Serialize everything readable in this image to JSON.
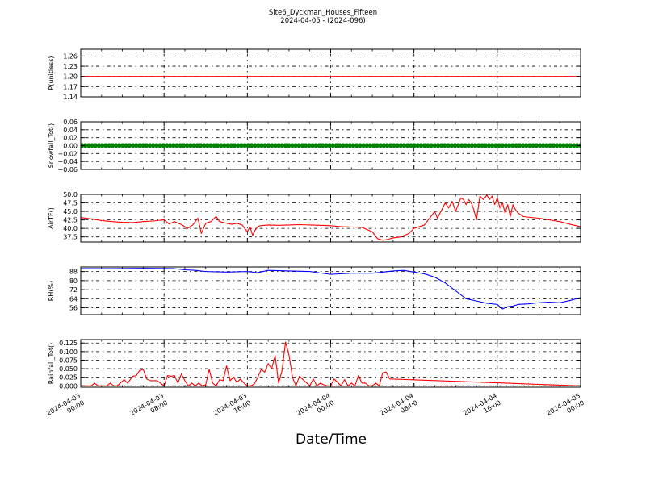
{
  "figure": {
    "title": "Site6_Dyckman_Houses_Fifteen",
    "subtitle": "2024-04-05 - (2024-096)",
    "xlabel": "Date/Time"
  },
  "chart_data": [
    {
      "type": "line",
      "ylabel": "P(unitless)",
      "ylim": [
        1.14,
        1.28
      ],
      "yticks": [
        "1.14",
        "1.17",
        "1.20",
        "1.23",
        "1.26"
      ],
      "grid": true,
      "series": [
        {
          "color": "#ff0000",
          "marker": false,
          "x": [
            "2024-04-03 00:00",
            "2024-04-05 00:00"
          ],
          "values": [
            1.2,
            1.2
          ]
        }
      ]
    },
    {
      "type": "line",
      "ylabel": "Snowfall_Tot()",
      "ylim": [
        -0.06,
        0.06
      ],
      "yticks": [
        "−0.06",
        "−0.04",
        "−0.02",
        "0.00",
        "0.02",
        "0.04",
        "0.06"
      ],
      "grid": true,
      "series": [
        {
          "color": "#008000",
          "marker": true,
          "x": [
            "2024-04-03 00:00",
            "2024-04-05 00:00"
          ],
          "values": [
            0,
            0
          ]
        }
      ]
    },
    {
      "type": "line",
      "ylabel": "AirTF()",
      "ylim": [
        36.0,
        50.0
      ],
      "yticks": [
        "37.5",
        "40.0",
        "42.5",
        "45.0",
        "47.5",
        "50.0"
      ],
      "grid": true,
      "series": [
        {
          "color": "#ff0000",
          "marker": false,
          "x": [
            "2024-04-03 00:00",
            "2024-04-03 01:00",
            "2024-04-03 02:00",
            "2024-04-03 03:00",
            "2024-04-03 04:00",
            "2024-04-03 05:00",
            "2024-04-03 06:00",
            "2024-04-03 07:00",
            "2024-04-03 08:00",
            "2024-04-03 08:30",
            "2024-04-03 09:00",
            "2024-04-03 09:45",
            "2024-04-03 10:15",
            "2024-04-03 10:45",
            "2024-04-03 11:15",
            "2024-04-03 11:35",
            "2024-04-03 12:00",
            "2024-04-03 12:30",
            "2024-04-03 13:00",
            "2024-04-03 13:20",
            "2024-04-03 14:00",
            "2024-04-03 14:30",
            "2024-04-03 15:00",
            "2024-04-03 15:30",
            "2024-04-03 16:00",
            "2024-04-03 16:15",
            "2024-04-03 16:30",
            "2024-04-03 16:45",
            "2024-04-03 17:00",
            "2024-04-03 17:15",
            "2024-04-03 18:00",
            "2024-04-03 19:00",
            "2024-04-03 20:00",
            "2024-04-03 21:00",
            "2024-04-03 22:00",
            "2024-04-03 23:00",
            "2024-04-04 00:00",
            "2024-04-04 01:00",
            "2024-04-04 02:00",
            "2024-04-04 03:00",
            "2024-04-04 04:00",
            "2024-04-04 04:30",
            "2024-04-04 05:00",
            "2024-04-04 05:30",
            "2024-04-04 06:00",
            "2024-04-04 06:45",
            "2024-04-04 07:30",
            "2024-04-04 08:00",
            "2024-04-04 08:30",
            "2024-04-04 09:00",
            "2024-04-04 09:30",
            "2024-04-04 10:00",
            "2024-04-04 10:15",
            "2024-04-04 10:30",
            "2024-04-04 11:00",
            "2024-04-04 11:20",
            "2024-04-04 11:40",
            "2024-04-04 12:00",
            "2024-04-04 12:15",
            "2024-04-04 12:30",
            "2024-04-04 12:45",
            "2024-04-04 13:00",
            "2024-04-04 13:15",
            "2024-04-04 13:30",
            "2024-04-04 13:45",
            "2024-04-04 14:00",
            "2024-04-04 14:20",
            "2024-04-04 14:40",
            "2024-04-04 15:00",
            "2024-04-04 15:15",
            "2024-04-04 15:30",
            "2024-04-04 15:45",
            "2024-04-04 16:00",
            "2024-04-04 16:15",
            "2024-04-04 16:30",
            "2024-04-04 16:45",
            "2024-04-04 17:00",
            "2024-04-04 17:15",
            "2024-04-04 17:30",
            "2024-04-04 17:45",
            "2024-04-04 18:00",
            "2024-04-04 18:30",
            "2024-04-04 19:00",
            "2024-04-04 20:00",
            "2024-04-04 21:00",
            "2024-04-04 22:00",
            "2024-04-04 23:00",
            "2024-04-05 00:00"
          ],
          "values": [
            43.2,
            42.8,
            42.3,
            42.0,
            41.8,
            41.7,
            42.0,
            42.2,
            42.5,
            41.3,
            42.0,
            41.0,
            40.0,
            41.0,
            43.0,
            38.5,
            41.5,
            42.0,
            43.5,
            42.0,
            41.5,
            41.2,
            41.5,
            41.0,
            39.0,
            40.5,
            38.0,
            39.5,
            40.5,
            40.8,
            41.0,
            40.9,
            41.0,
            41.1,
            41.0,
            40.9,
            40.8,
            40.5,
            40.4,
            40.3,
            39.0,
            37.0,
            36.5,
            36.8,
            37.2,
            37.5,
            38.5,
            40.0,
            40.5,
            41.0,
            43.0,
            45.0,
            43.0,
            44.5,
            47.5,
            46.0,
            48.0,
            45.0,
            47.0,
            49.0,
            48.5,
            47.0,
            48.5,
            47.5,
            45.5,
            42.5,
            49.5,
            48.5,
            49.8,
            48.5,
            49.5,
            47.0,
            49.0,
            46.0,
            47.5,
            44.5,
            47.0,
            43.5,
            47.0,
            45.5,
            44.5,
            43.5,
            43.3,
            43.0,
            42.5,
            42.0,
            41.2,
            40.5
          ]
        }
      ]
    },
    {
      "type": "line",
      "ylabel": "RH(%)",
      "ylim": [
        50,
        92
      ],
      "yticks": [
        "56",
        "64",
        "72",
        "80",
        "88"
      ],
      "grid": true,
      "series": [
        {
          "color": "#0000ff",
          "marker": false,
          "x": [
            "2024-04-03 00:00",
            "2024-04-03 03:00",
            "2024-04-03 06:00",
            "2024-04-03 09:00",
            "2024-04-03 10:00",
            "2024-04-03 11:00",
            "2024-04-03 12:00",
            "2024-04-03 14:00",
            "2024-04-03 16:00",
            "2024-04-03 17:00",
            "2024-04-03 18:00",
            "2024-04-03 20:00",
            "2024-04-03 22:00",
            "2024-04-04 00:00",
            "2024-04-04 02:00",
            "2024-04-04 04:00",
            "2024-04-04 06:00",
            "2024-04-04 07:00",
            "2024-04-04 08:00",
            "2024-04-04 09:00",
            "2024-04-04 10:00",
            "2024-04-04 11:00",
            "2024-04-04 12:00",
            "2024-04-04 13:00",
            "2024-04-04 14:00",
            "2024-04-04 15:00",
            "2024-04-04 16:00",
            "2024-04-04 16:30",
            "2024-04-04 17:00",
            "2024-04-04 17:30",
            "2024-04-04 18:00",
            "2024-04-04 19:00",
            "2024-04-04 20:00",
            "2024-04-04 21:00",
            "2024-04-04 22:00",
            "2024-04-04 23:00",
            "2024-04-05 00:00"
          ],
          "values": [
            90.5,
            90.5,
            90.8,
            90.5,
            89.5,
            89.0,
            88.0,
            87.5,
            88.0,
            87.0,
            89.0,
            88.5,
            88.0,
            85.5,
            86.5,
            86.5,
            88.5,
            89.0,
            87.5,
            86.0,
            83.0,
            78.0,
            71.0,
            64.0,
            62.0,
            60.0,
            59.0,
            55.0,
            57.0,
            57.5,
            59.0,
            59.5,
            60.5,
            61.0,
            60.5,
            62.5,
            65.0
          ]
        }
      ]
    },
    {
      "type": "line",
      "ylabel": "Rainfall_Tot()",
      "ylim": [
        -0.004,
        0.135
      ],
      "yticks": [
        "0.000",
        "0.025",
        "0.050",
        "0.075",
        "0.100",
        "0.125"
      ],
      "grid": true,
      "series": [
        {
          "color": "#ff0000",
          "marker": false,
          "x": [
            "2024-04-03 00:00",
            "2024-04-03 01:00",
            "2024-04-03 01:20",
            "2024-04-03 01:40",
            "2024-04-03 02:30",
            "2024-04-03 02:50",
            "2024-04-03 03:10",
            "2024-04-03 03:30",
            "2024-04-03 04:10",
            "2024-04-03 04:30",
            "2024-04-03 05:00",
            "2024-04-03 05:20",
            "2024-04-03 05:40",
            "2024-04-03 06:00",
            "2024-04-03 06:20",
            "2024-04-03 06:40",
            "2024-04-03 07:00",
            "2024-04-03 07:20",
            "2024-04-03 07:40",
            "2024-04-03 08:00",
            "2024-04-03 08:20",
            "2024-04-03 08:40",
            "2024-04-03 09:00",
            "2024-04-03 09:20",
            "2024-04-03 09:40",
            "2024-04-03 10:00",
            "2024-04-03 10:20",
            "2024-04-03 10:40",
            "2024-04-03 11:00",
            "2024-04-03 11:20",
            "2024-04-03 11:40",
            "2024-04-03 12:00",
            "2024-04-03 12:20",
            "2024-04-03 12:40",
            "2024-04-03 13:00",
            "2024-04-03 13:20",
            "2024-04-03 13:40",
            "2024-04-03 14:00",
            "2024-04-03 14:20",
            "2024-04-03 14:40",
            "2024-04-03 15:00",
            "2024-04-03 15:20",
            "2024-04-03 15:40",
            "2024-04-03 16:00",
            "2024-04-03 16:20",
            "2024-04-03 16:40",
            "2024-04-03 17:00",
            "2024-04-03 17:20",
            "2024-04-03 17:40",
            "2024-04-03 18:00",
            "2024-04-03 18:20",
            "2024-04-03 18:40",
            "2024-04-03 19:00",
            "2024-04-03 19:20",
            "2024-04-03 19:40",
            "2024-04-03 20:00",
            "2024-04-03 20:20",
            "2024-04-03 20:40",
            "2024-04-03 21:00",
            "2024-04-03 22:00",
            "2024-04-03 22:20",
            "2024-04-03 22:40",
            "2024-04-03 23:00",
            "2024-04-03 23:20",
            "2024-04-03 23:40",
            "2024-04-04 00:00",
            "2024-04-04 00:20",
            "2024-04-04 00:40",
            "2024-04-04 01:00",
            "2024-04-04 01:20",
            "2024-04-04 01:40",
            "2024-04-04 02:00",
            "2024-04-04 02:20",
            "2024-04-04 02:40",
            "2024-04-04 03:00",
            "2024-04-04 03:20",
            "2024-04-04 03:40",
            "2024-04-04 04:00",
            "2024-04-04 04:20",
            "2024-04-04 04:40",
            "2024-04-04 05:00",
            "2024-04-04 05:20",
            "2024-04-04 05:40",
            "2024-04-05 00:00"
          ],
          "values": [
            0.0,
            0.0,
            0.008,
            0.0,
            0.0,
            0.008,
            0.0,
            0.0,
            0.018,
            0.008,
            0.028,
            0.03,
            0.045,
            0.048,
            0.02,
            0.015,
            0.015,
            0.015,
            0.008,
            0.0,
            0.03,
            0.028,
            0.03,
            0.008,
            0.035,
            0.015,
            0.0,
            0.008,
            0.0,
            0.008,
            0.0,
            0.003,
            0.048,
            0.008,
            0.0,
            0.018,
            0.015,
            0.058,
            0.015,
            0.025,
            0.01,
            0.02,
            0.008,
            0.0,
            0.0,
            0.005,
            0.025,
            0.048,
            0.04,
            0.065,
            0.05,
            0.088,
            0.008,
            0.045,
            0.128,
            0.09,
            0.025,
            0.0,
            0.028,
            0.0,
            0.02,
            0.0,
            0.008,
            0.003,
            0.0,
            0.0,
            0.02,
            0.01,
            0.0,
            0.018,
            0.0,
            0.008,
            0.0,
            0.03,
            0.008,
            0.008,
            0.0,
            0.0,
            0.008,
            0.0,
            0.038,
            0.04,
            0.02,
            0.0
          ]
        }
      ]
    }
  ],
  "x_axis": {
    "range": [
      "2024-04-03 00:00",
      "2024-04-05 00:00"
    ],
    "ticks": [
      {
        "at": "2024-04-03 00:00",
        "date": "2024-04-03",
        "time": "00:00"
      },
      {
        "at": "2024-04-03 08:00",
        "date": "2024-04-03",
        "time": "08:00"
      },
      {
        "at": "2024-04-03 16:00",
        "date": "2024-04-03",
        "time": "16:00"
      },
      {
        "at": "2024-04-04 00:00",
        "date": "2024-04-04",
        "time": "00:00"
      },
      {
        "at": "2024-04-04 08:00",
        "date": "2024-04-04",
        "time": "08:00"
      },
      {
        "at": "2024-04-04 16:00",
        "date": "2024-04-04",
        "time": "16:00"
      },
      {
        "at": "2024-04-05 00:00",
        "date": "2024-04-05",
        "time": "00:00"
      }
    ]
  }
}
